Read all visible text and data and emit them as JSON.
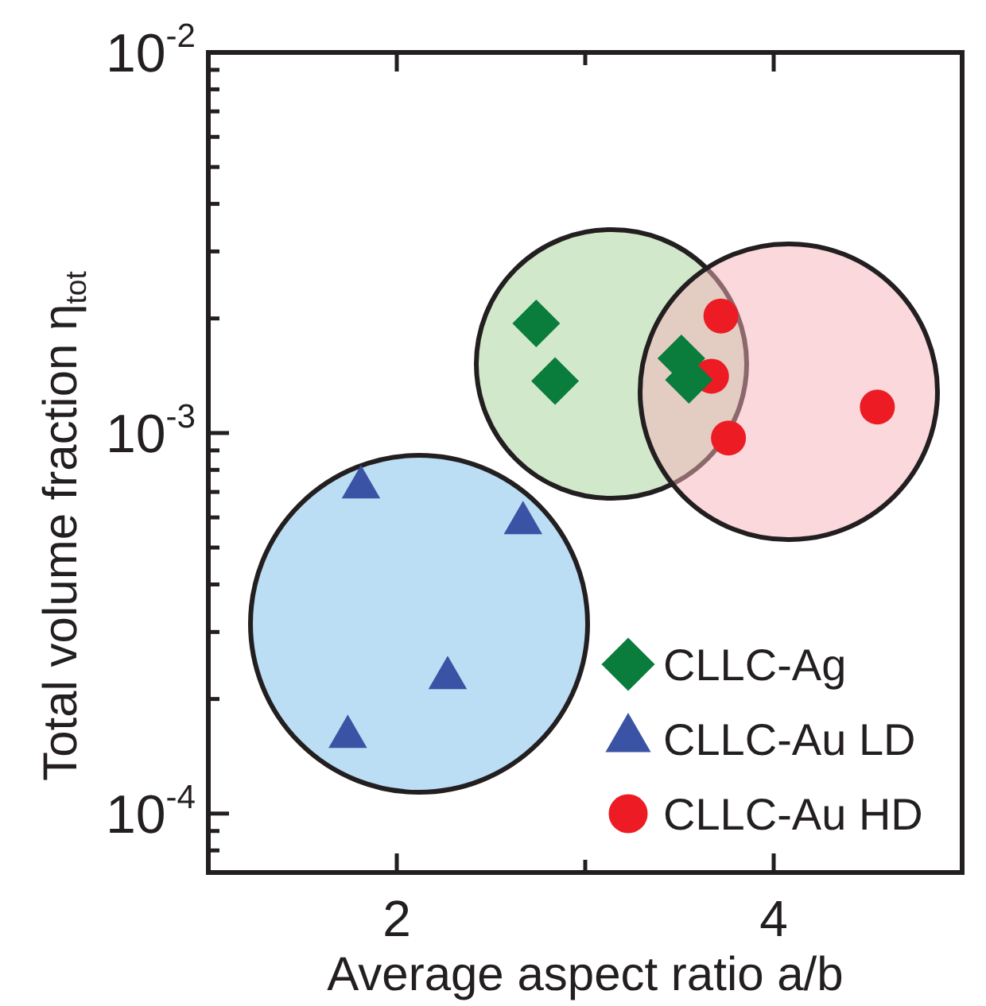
{
  "chart_data": {
    "type": "scatter",
    "xlabel": "Average aspect ratio a/b",
    "ylabel": "Total volume fraction η$_{tot}$",
    "log": "y",
    "legend": "bottom right",
    "xlim": [
      1,
      5
    ],
    "xticks": [
      2,
      {
        "value": 3,
        "label": null
      },
      4
    ],
    "ylim": [
      7e-05,
      0.01
    ],
    "yticks": [
      {
        "value": 8e-05,
        "label": null
      },
      {
        "value": 9e-05,
        "label": null
      },
      {
        "value": 0.0001,
        "label": "10$^{-4}$"
      },
      {
        "value": 0.0002,
        "label": null
      },
      {
        "value": 0.0003,
        "label": null
      },
      {
        "value": 0.0004,
        "label": null
      },
      {
        "value": 0.0005,
        "label": null
      },
      {
        "value": 0.0006,
        "label": null
      },
      {
        "value": 0.0007,
        "label": null
      },
      {
        "value": 0.0008,
        "label": null
      },
      {
        "value": 0.0009,
        "label": null
      },
      {
        "value": 0.001,
        "label": "10$^{-3}$"
      },
      {
        "value": 0.002,
        "label": null
      },
      {
        "value": 0.003,
        "label": null
      },
      {
        "value": 0.004,
        "label": null
      },
      {
        "value": 0.005,
        "label": null
      },
      {
        "value": 0.006,
        "label": null
      },
      {
        "value": 0.007,
        "label": null
      },
      {
        "value": 0.008,
        "label": null
      },
      {
        "value": 0.009,
        "label": null
      },
      {
        "value": 0.01,
        "label": "10$^{-2}$"
      }
    ],
    "series": [
      {
        "name": "CLLC-Ag",
        "color": "#0a7c3c",
        "marker": "diamond",
        "x": [
          2.74,
          2.84,
          3.51,
          3.55
        ],
        "values": [
          0.00194,
          0.00137,
          0.00157,
          0.00138
        ]
      },
      {
        "name": "CLLC-Au LD",
        "color": "#3a53a4",
        "marker": "triangle",
        "x": [
          1.81,
          2.67,
          2.27,
          1.74
        ],
        "values": [
          0.00072,
          0.00058,
          0.000227,
          0.000159
        ]
      },
      {
        "name": "CLLC-Au HD",
        "color": "#ed1c24",
        "marker": "circle",
        "x": [
          3.72,
          3.67,
          3.76,
          4.55
        ],
        "values": [
          0.00203,
          0.00141,
          0.00097,
          0.00117
        ]
      }
    ]
  }
}
